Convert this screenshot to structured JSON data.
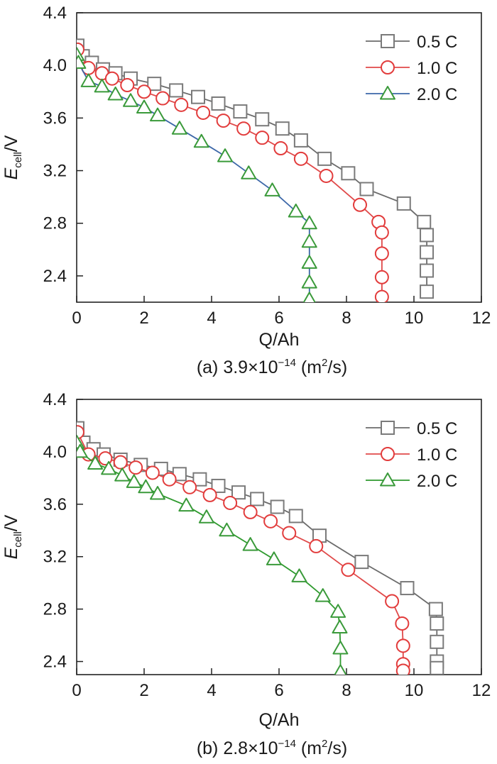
{
  "chart_data": [
    {
      "type": "line",
      "caption": {
        "prefix": "(a) 3.9×10",
        "exp": "−14",
        "unit_pre": " (m",
        "unit_sup": "2",
        "unit_post": "/s)"
      },
      "xlabel": "Q/Ah",
      "ylabel": {
        "main": "E",
        "sub": "cell",
        "tail": "/V"
      },
      "xlim": [
        0,
        12
      ],
      "ylim": [
        2.2,
        4.4
      ],
      "xticks": [
        0,
        2,
        4,
        6,
        8,
        10,
        12
      ],
      "yticks": [
        2.4,
        2.8,
        3.2,
        3.6,
        4.0,
        4.4
      ],
      "grid": false,
      "legend_position": "top-right",
      "series": [
        {
          "name": "0.5 C",
          "marker": "square",
          "line_color": "#6b6b6b",
          "marker_color": "#7a7a7a",
          "points": [
            [
              0.02,
              4.15
            ],
            [
              0.18,
              4.07
            ],
            [
              0.45,
              4.02
            ],
            [
              0.78,
              3.97
            ],
            [
              1.15,
              3.94
            ],
            [
              1.6,
              3.9
            ],
            [
              2.3,
              3.86
            ],
            [
              2.95,
              3.81
            ],
            [
              3.6,
              3.76
            ],
            [
              4.2,
              3.71
            ],
            [
              4.85,
              3.65
            ],
            [
              5.5,
              3.59
            ],
            [
              6.1,
              3.52
            ],
            [
              6.65,
              3.43
            ],
            [
              7.35,
              3.29
            ],
            [
              8.05,
              3.18
            ],
            [
              8.6,
              3.06
            ],
            [
              9.7,
              2.95
            ],
            [
              10.3,
              2.81
            ],
            [
              10.38,
              2.71
            ],
            [
              10.38,
              2.58
            ],
            [
              10.38,
              2.44
            ],
            [
              10.38,
              2.28
            ]
          ]
        },
        {
          "name": "1.0 C",
          "marker": "circle",
          "line_color": "#e04a4a",
          "marker_color": "#e23c3c",
          "points": [
            [
              0.02,
              4.12
            ],
            [
              0.35,
              3.98
            ],
            [
              0.75,
              3.94
            ],
            [
              1.05,
              3.9
            ],
            [
              1.5,
              3.85
            ],
            [
              2.0,
              3.8
            ],
            [
              2.55,
              3.75
            ],
            [
              3.1,
              3.7
            ],
            [
              3.75,
              3.64
            ],
            [
              4.35,
              3.58
            ],
            [
              4.95,
              3.52
            ],
            [
              5.5,
              3.45
            ],
            [
              6.05,
              3.37
            ],
            [
              6.65,
              3.29
            ],
            [
              7.4,
              3.16
            ],
            [
              8.4,
              2.94
            ],
            [
              8.95,
              2.81
            ],
            [
              9.05,
              2.73
            ],
            [
              9.05,
              2.57
            ],
            [
              9.05,
              2.39
            ],
            [
              9.05,
              2.24
            ]
          ]
        },
        {
          "name": "2.0 C",
          "marker": "triangle",
          "line_color": "#3c67a8",
          "marker_color": "#3a9a3a",
          "points": [
            [
              0.0,
              4.08
            ],
            [
              0.05,
              4.02
            ],
            [
              0.35,
              3.88
            ],
            [
              0.75,
              3.84
            ],
            [
              1.15,
              3.78
            ],
            [
              1.6,
              3.73
            ],
            [
              2.0,
              3.68
            ],
            [
              2.4,
              3.62
            ],
            [
              3.05,
              3.52
            ],
            [
              3.7,
              3.42
            ],
            [
              4.4,
              3.31
            ],
            [
              5.1,
              3.18
            ],
            [
              5.8,
              3.05
            ],
            [
              6.5,
              2.89
            ],
            [
              6.9,
              2.8
            ],
            [
              6.9,
              2.66
            ],
            [
              6.9,
              2.5
            ],
            [
              6.9,
              2.35
            ],
            [
              6.9,
              2.22
            ]
          ]
        }
      ]
    },
    {
      "type": "line",
      "caption": {
        "prefix": "(b) 2.8×10",
        "exp": "−14",
        "unit_pre": " (m",
        "unit_sup": "2",
        "unit_post": "/s)"
      },
      "xlabel": "Q/Ah",
      "ylabel": {
        "main": "E",
        "sub": "cell",
        "tail": "/V"
      },
      "xlim": [
        0,
        12
      ],
      "ylim": [
        2.3,
        4.4
      ],
      "xticks": [
        0,
        2,
        4,
        6,
        8,
        10,
        12
      ],
      "yticks": [
        2.4,
        2.8,
        3.2,
        3.6,
        4.0,
        4.4
      ],
      "grid": false,
      "legend_position": "top-right",
      "series": [
        {
          "name": "0.5 C",
          "marker": "square",
          "line_color": "#6b6b6b",
          "marker_color": "#7a7a7a",
          "points": [
            [
              0.02,
              4.18
            ],
            [
              0.2,
              4.07
            ],
            [
              0.5,
              4.02
            ],
            [
              0.8,
              3.98
            ],
            [
              1.3,
              3.94
            ],
            [
              1.9,
              3.9
            ],
            [
              2.5,
              3.87
            ],
            [
              3.05,
              3.83
            ],
            [
              3.65,
              3.79
            ],
            [
              4.2,
              3.74
            ],
            [
              4.8,
              3.69
            ],
            [
              5.35,
              3.64
            ],
            [
              5.95,
              3.58
            ],
            [
              6.5,
              3.51
            ],
            [
              7.2,
              3.36
            ],
            [
              8.45,
              3.16
            ],
            [
              9.8,
              2.96
            ],
            [
              10.65,
              2.8
            ],
            [
              10.68,
              2.69
            ],
            [
              10.68,
              2.55
            ],
            [
              10.68,
              2.4
            ],
            [
              10.68,
              2.35
            ]
          ]
        },
        {
          "name": "1.0 C",
          "marker": "circle",
          "line_color": "#e04a4a",
          "marker_color": "#e23c3c",
          "points": [
            [
              0.02,
              4.15
            ],
            [
              0.35,
              3.98
            ],
            [
              0.85,
              3.95
            ],
            [
              1.3,
              3.92
            ],
            [
              1.75,
              3.88
            ],
            [
              2.25,
              3.84
            ],
            [
              2.75,
              3.79
            ],
            [
              3.35,
              3.73
            ],
            [
              3.95,
              3.67
            ],
            [
              4.55,
              3.61
            ],
            [
              5.15,
              3.54
            ],
            [
              5.75,
              3.47
            ],
            [
              6.3,
              3.38
            ],
            [
              7.1,
              3.28
            ],
            [
              8.05,
              3.1
            ],
            [
              9.35,
              2.86
            ],
            [
              9.65,
              2.69
            ],
            [
              9.68,
              2.52
            ],
            [
              9.68,
              2.38
            ],
            [
              9.68,
              2.33
            ]
          ]
        },
        {
          "name": "2.0 C",
          "marker": "triangle",
          "line_color": "#2e9a2e",
          "marker_color": "#3a9a3a",
          "points": [
            [
              0.0,
              4.07
            ],
            [
              0.1,
              4.0
            ],
            [
              0.55,
              3.91
            ],
            [
              0.95,
              3.87
            ],
            [
              1.35,
              3.82
            ],
            [
              1.7,
              3.77
            ],
            [
              2.05,
              3.73
            ],
            [
              2.4,
              3.68
            ],
            [
              3.25,
              3.59
            ],
            [
              3.85,
              3.5
            ],
            [
              4.45,
              3.4
            ],
            [
              5.15,
              3.29
            ],
            [
              5.85,
              3.18
            ],
            [
              6.6,
              3.05
            ],
            [
              7.3,
              2.9
            ],
            [
              7.75,
              2.78
            ],
            [
              7.8,
              2.66
            ],
            [
              7.82,
              2.5
            ],
            [
              7.82,
              2.32
            ]
          ]
        }
      ]
    }
  ]
}
